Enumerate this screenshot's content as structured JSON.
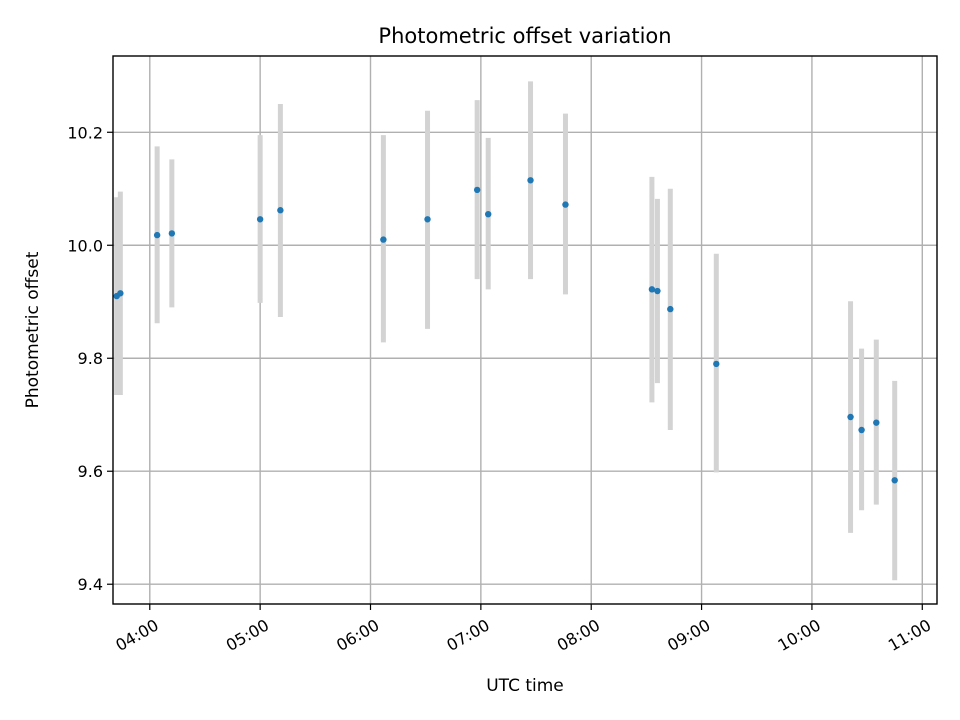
{
  "chart_data": {
    "type": "scatter",
    "title": "Photometric offset variation",
    "xlabel": "UTC time",
    "ylabel": "Photometric offset",
    "x_ticks": [
      "04:00",
      "05:00",
      "06:00",
      "07:00",
      "08:00",
      "09:00",
      "10:00",
      "11:00"
    ],
    "y_ticks": [
      "9.4",
      "9.6",
      "9.8",
      "10.0",
      "10.2"
    ],
    "xlim": [
      "03:40",
      "11:08"
    ],
    "ylim": [
      9.365,
      10.335
    ],
    "grid": true,
    "marker_color": "#1f77b4",
    "errorbar_color": "#d3d3d3",
    "points": [
      {
        "time": "03:42",
        "y": 9.91,
        "yerr_low": 9.735,
        "yerr_high": 10.085
      },
      {
        "time": "03:44",
        "y": 9.915,
        "yerr_low": 9.735,
        "yerr_high": 10.095
      },
      {
        "time": "04:04",
        "y": 10.018,
        "yerr_low": 9.862,
        "yerr_high": 10.175
      },
      {
        "time": "04:12",
        "y": 10.021,
        "yerr_low": 9.89,
        "yerr_high": 10.152
      },
      {
        "time": "05:00",
        "y": 10.046,
        "yerr_low": 9.898,
        "yerr_high": 10.195
      },
      {
        "time": "05:11",
        "y": 10.062,
        "yerr_low": 9.873,
        "yerr_high": 10.25
      },
      {
        "time": "06:07",
        "y": 10.01,
        "yerr_low": 9.828,
        "yerr_high": 10.195
      },
      {
        "time": "06:31",
        "y": 10.046,
        "yerr_low": 9.852,
        "yerr_high": 10.238
      },
      {
        "time": "06:58",
        "y": 10.098,
        "yerr_low": 9.94,
        "yerr_high": 10.257
      },
      {
        "time": "07:04",
        "y": 10.055,
        "yerr_low": 9.922,
        "yerr_high": 10.19
      },
      {
        "time": "07:27",
        "y": 10.115,
        "yerr_low": 9.94,
        "yerr_high": 10.29
      },
      {
        "time": "07:46",
        "y": 10.072,
        "yerr_low": 9.913,
        "yerr_high": 10.233
      },
      {
        "time": "08:33",
        "y": 9.922,
        "yerr_low": 9.722,
        "yerr_high": 10.121
      },
      {
        "time": "08:36",
        "y": 9.919,
        "yerr_low": 9.756,
        "yerr_high": 10.082
      },
      {
        "time": "08:43",
        "y": 9.887,
        "yerr_low": 9.673,
        "yerr_high": 10.1
      },
      {
        "time": "09:08",
        "y": 9.79,
        "yerr_low": 9.598,
        "yerr_high": 9.985
      },
      {
        "time": "10:21",
        "y": 9.696,
        "yerr_low": 9.491,
        "yerr_high": 9.901
      },
      {
        "time": "10:27",
        "y": 9.673,
        "yerr_low": 9.531,
        "yerr_high": 9.817
      },
      {
        "time": "10:35",
        "y": 9.686,
        "yerr_low": 9.541,
        "yerr_high": 9.833
      },
      {
        "time": "10:45",
        "y": 9.584,
        "yerr_low": 9.407,
        "yerr_high": 9.76
      }
    ]
  }
}
